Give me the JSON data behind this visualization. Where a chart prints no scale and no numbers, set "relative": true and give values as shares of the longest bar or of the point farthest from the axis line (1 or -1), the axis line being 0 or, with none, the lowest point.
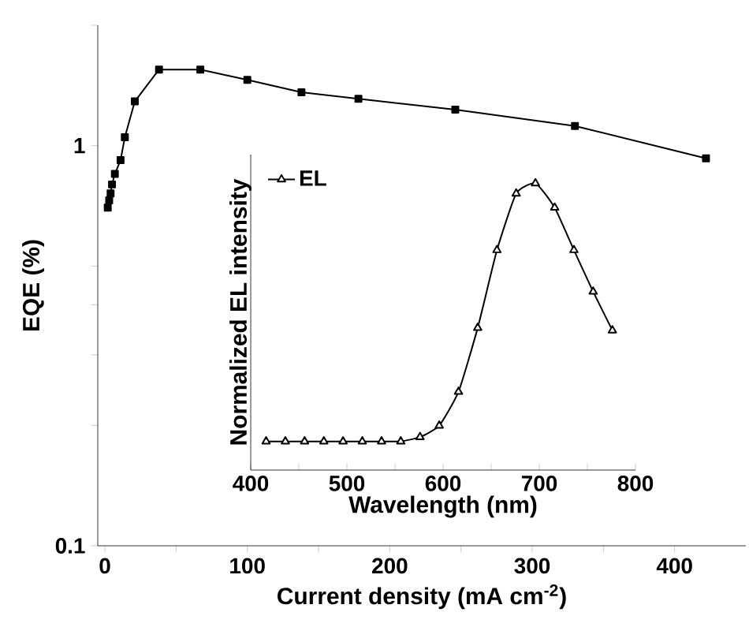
{
  "chart_data": [
    {
      "type": "line",
      "xlabel": "Current density (mA cm$^{-2}$)",
      "ylabel": "EQE (%)",
      "x": [
        2,
        3,
        4,
        5,
        7,
        11,
        14,
        21,
        38,
        67,
        100,
        138,
        178,
        246,
        330,
        422
      ],
      "values": [
        0.7,
        0.73,
        0.76,
        0.8,
        0.85,
        0.92,
        1.05,
        1.29,
        1.55,
        1.55,
        1.46,
        1.36,
        1.31,
        1.23,
        1.12,
        0.93
      ],
      "color": "#000000",
      "marker": "square",
      "log": "y",
      "xlim": [
        -5,
        450
      ],
      "ylim": [
        0.1,
        2
      ],
      "xticks": [
        0,
        {
          "value": 50,
          "label": null
        },
        100,
        {
          "value": 150,
          "label": null
        },
        200,
        {
          "value": 250,
          "label": null
        },
        300,
        {
          "value": 350,
          "label": null
        },
        400
      ],
      "yticks": [
        0.1,
        {
          "value": 0.2,
          "label": null
        },
        {
          "value": 0.3,
          "label": null
        },
        {
          "value": 0.4,
          "label": null
        },
        {
          "value": 0.5,
          "label": null
        },
        1,
        {
          "value": 2,
          "label": null
        }
      ]
    },
    {
      "type": "line",
      "xlabel": "Wavelength (nm)",
      "ylabel": "Normalized EL intensity",
      "relative": true,
      "x": [
        416,
        436,
        456,
        476,
        496,
        516,
        536,
        556,
        576,
        596,
        616,
        636,
        656,
        676,
        696,
        716,
        736,
        756,
        776
      ],
      "series": [
        {
          "name": "EL",
          "color": "#000000",
          "values": [
            0.1,
            0.1,
            0.1,
            0.1,
            0.1,
            0.1,
            0.1,
            0.1,
            0.115,
            0.155,
            0.273,
            0.496,
            0.767,
            0.964,
            1.0,
            0.915,
            0.767,
            0.622,
            0.487
          ]
        }
      ],
      "marker": "triangle",
      "legend": "top left",
      "xlim": [
        400,
        800
      ],
      "xticks": [
        400,
        {
          "value": 450,
          "label": null
        },
        500,
        {
          "value": 550,
          "label": null
        },
        600,
        {
          "value": 650,
          "label": null
        },
        700,
        {
          "value": 750,
          "label": null
        },
        800
      ]
    }
  ]
}
